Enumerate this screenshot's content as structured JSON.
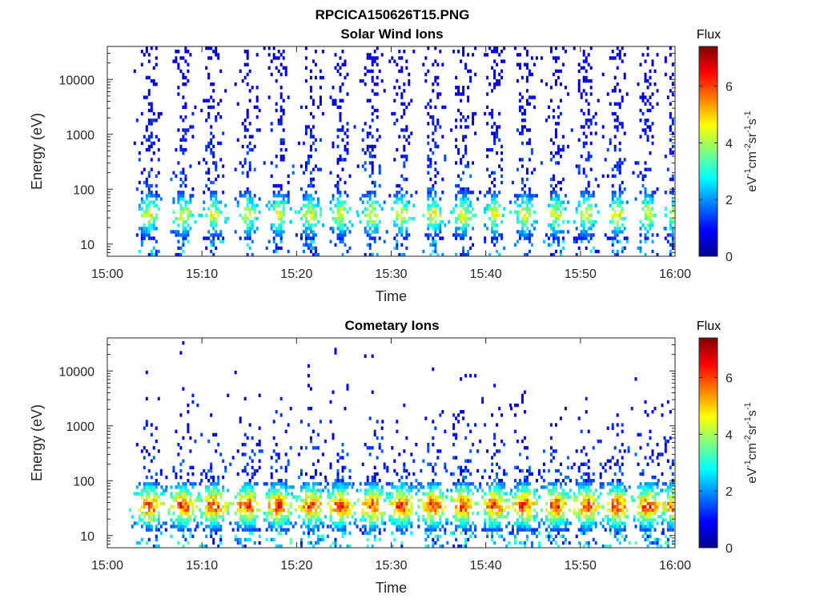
{
  "figure_title": "RPCICA150626T15.PNG",
  "chart_data": [
    {
      "type": "heatmap",
      "title": "Solar Wind Ions",
      "xlabel": "Time",
      "ylabel": "Energy (eV)",
      "x_ticks": [
        "15:00",
        "15:10",
        "15:20",
        "15:30",
        "15:40",
        "15:50",
        "16:00"
      ],
      "x_range": [
        "15:00",
        "16:00"
      ],
      "y_scale": "log",
      "y_ticks": [
        10,
        100,
        1000,
        10000
      ],
      "y_tick_labels": [
        "10",
        "100",
        "1000",
        "10000"
      ],
      "y_range": [
        6,
        40000
      ],
      "colorbar": {
        "label": "Flux",
        "unit_label": "eV^-1cm^-2sr^-1s^-1",
        "range": [
          0,
          7.4
        ],
        "ticks": [
          0,
          2,
          4,
          6
        ]
      },
      "scan_times_minutes": [
        4.3,
        7.9,
        11.1,
        14.7,
        18.0,
        21.4,
        24.5,
        27.9,
        31.0,
        34.3,
        37.5,
        40.8,
        44.0,
        47.3,
        50.5,
        53.8,
        57.0,
        59.9
      ],
      "peak_energy_eV": 35,
      "peak_flux": 5.2,
      "grid": false
    },
    {
      "type": "heatmap",
      "title": "Cometary Ions",
      "xlabel": "Time",
      "ylabel": "Energy (eV)",
      "x_ticks": [
        "15:00",
        "15:10",
        "15:20",
        "15:30",
        "15:40",
        "15:50",
        "16:00"
      ],
      "x_range": [
        "15:00",
        "16:00"
      ],
      "y_scale": "log",
      "y_ticks": [
        10,
        100,
        1000,
        10000
      ],
      "y_tick_labels": [
        "10",
        "100",
        "1000",
        "10000"
      ],
      "y_range": [
        6,
        40000
      ],
      "colorbar": {
        "label": "Flux",
        "unit_label": "eV^-1cm^-2sr^-1s^-1",
        "range": [
          0,
          7.4
        ],
        "ticks": [
          0,
          2,
          4,
          6
        ]
      },
      "scan_times_minutes": [
        4.3,
        7.9,
        11.1,
        14.7,
        18.0,
        21.4,
        24.5,
        27.9,
        31.0,
        34.3,
        37.5,
        40.8,
        44.0,
        47.3,
        50.5,
        53.8,
        57.0,
        59.9
      ],
      "peak_energy_eV": 35,
      "peak_flux": 7.0,
      "grid": false
    }
  ]
}
